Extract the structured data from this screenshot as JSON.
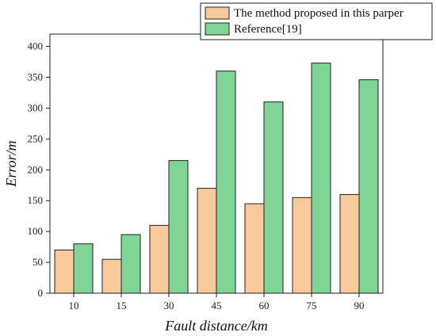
{
  "chart_data": {
    "type": "bar",
    "title": "",
    "xlabel": "Fault distance/km",
    "ylabel": "Error/m",
    "categories": [
      "10",
      "15",
      "30",
      "45",
      "60",
      "75",
      "90"
    ],
    "series": [
      {
        "name": "The method proposed in this parper",
        "color": "#f8c99a",
        "values": [
          70,
          55,
          110,
          170,
          145,
          155,
          160
        ]
      },
      {
        "name": "Reference[19]",
        "color": "#7fd496",
        "values": [
          80,
          95,
          215,
          360,
          310,
          373,
          346
        ]
      }
    ],
    "ylim": [
      0,
      420
    ],
    "yticks": [
      0,
      50,
      100,
      150,
      200,
      250,
      300,
      350,
      400
    ],
    "grid": false,
    "legend_position": "top-right"
  }
}
